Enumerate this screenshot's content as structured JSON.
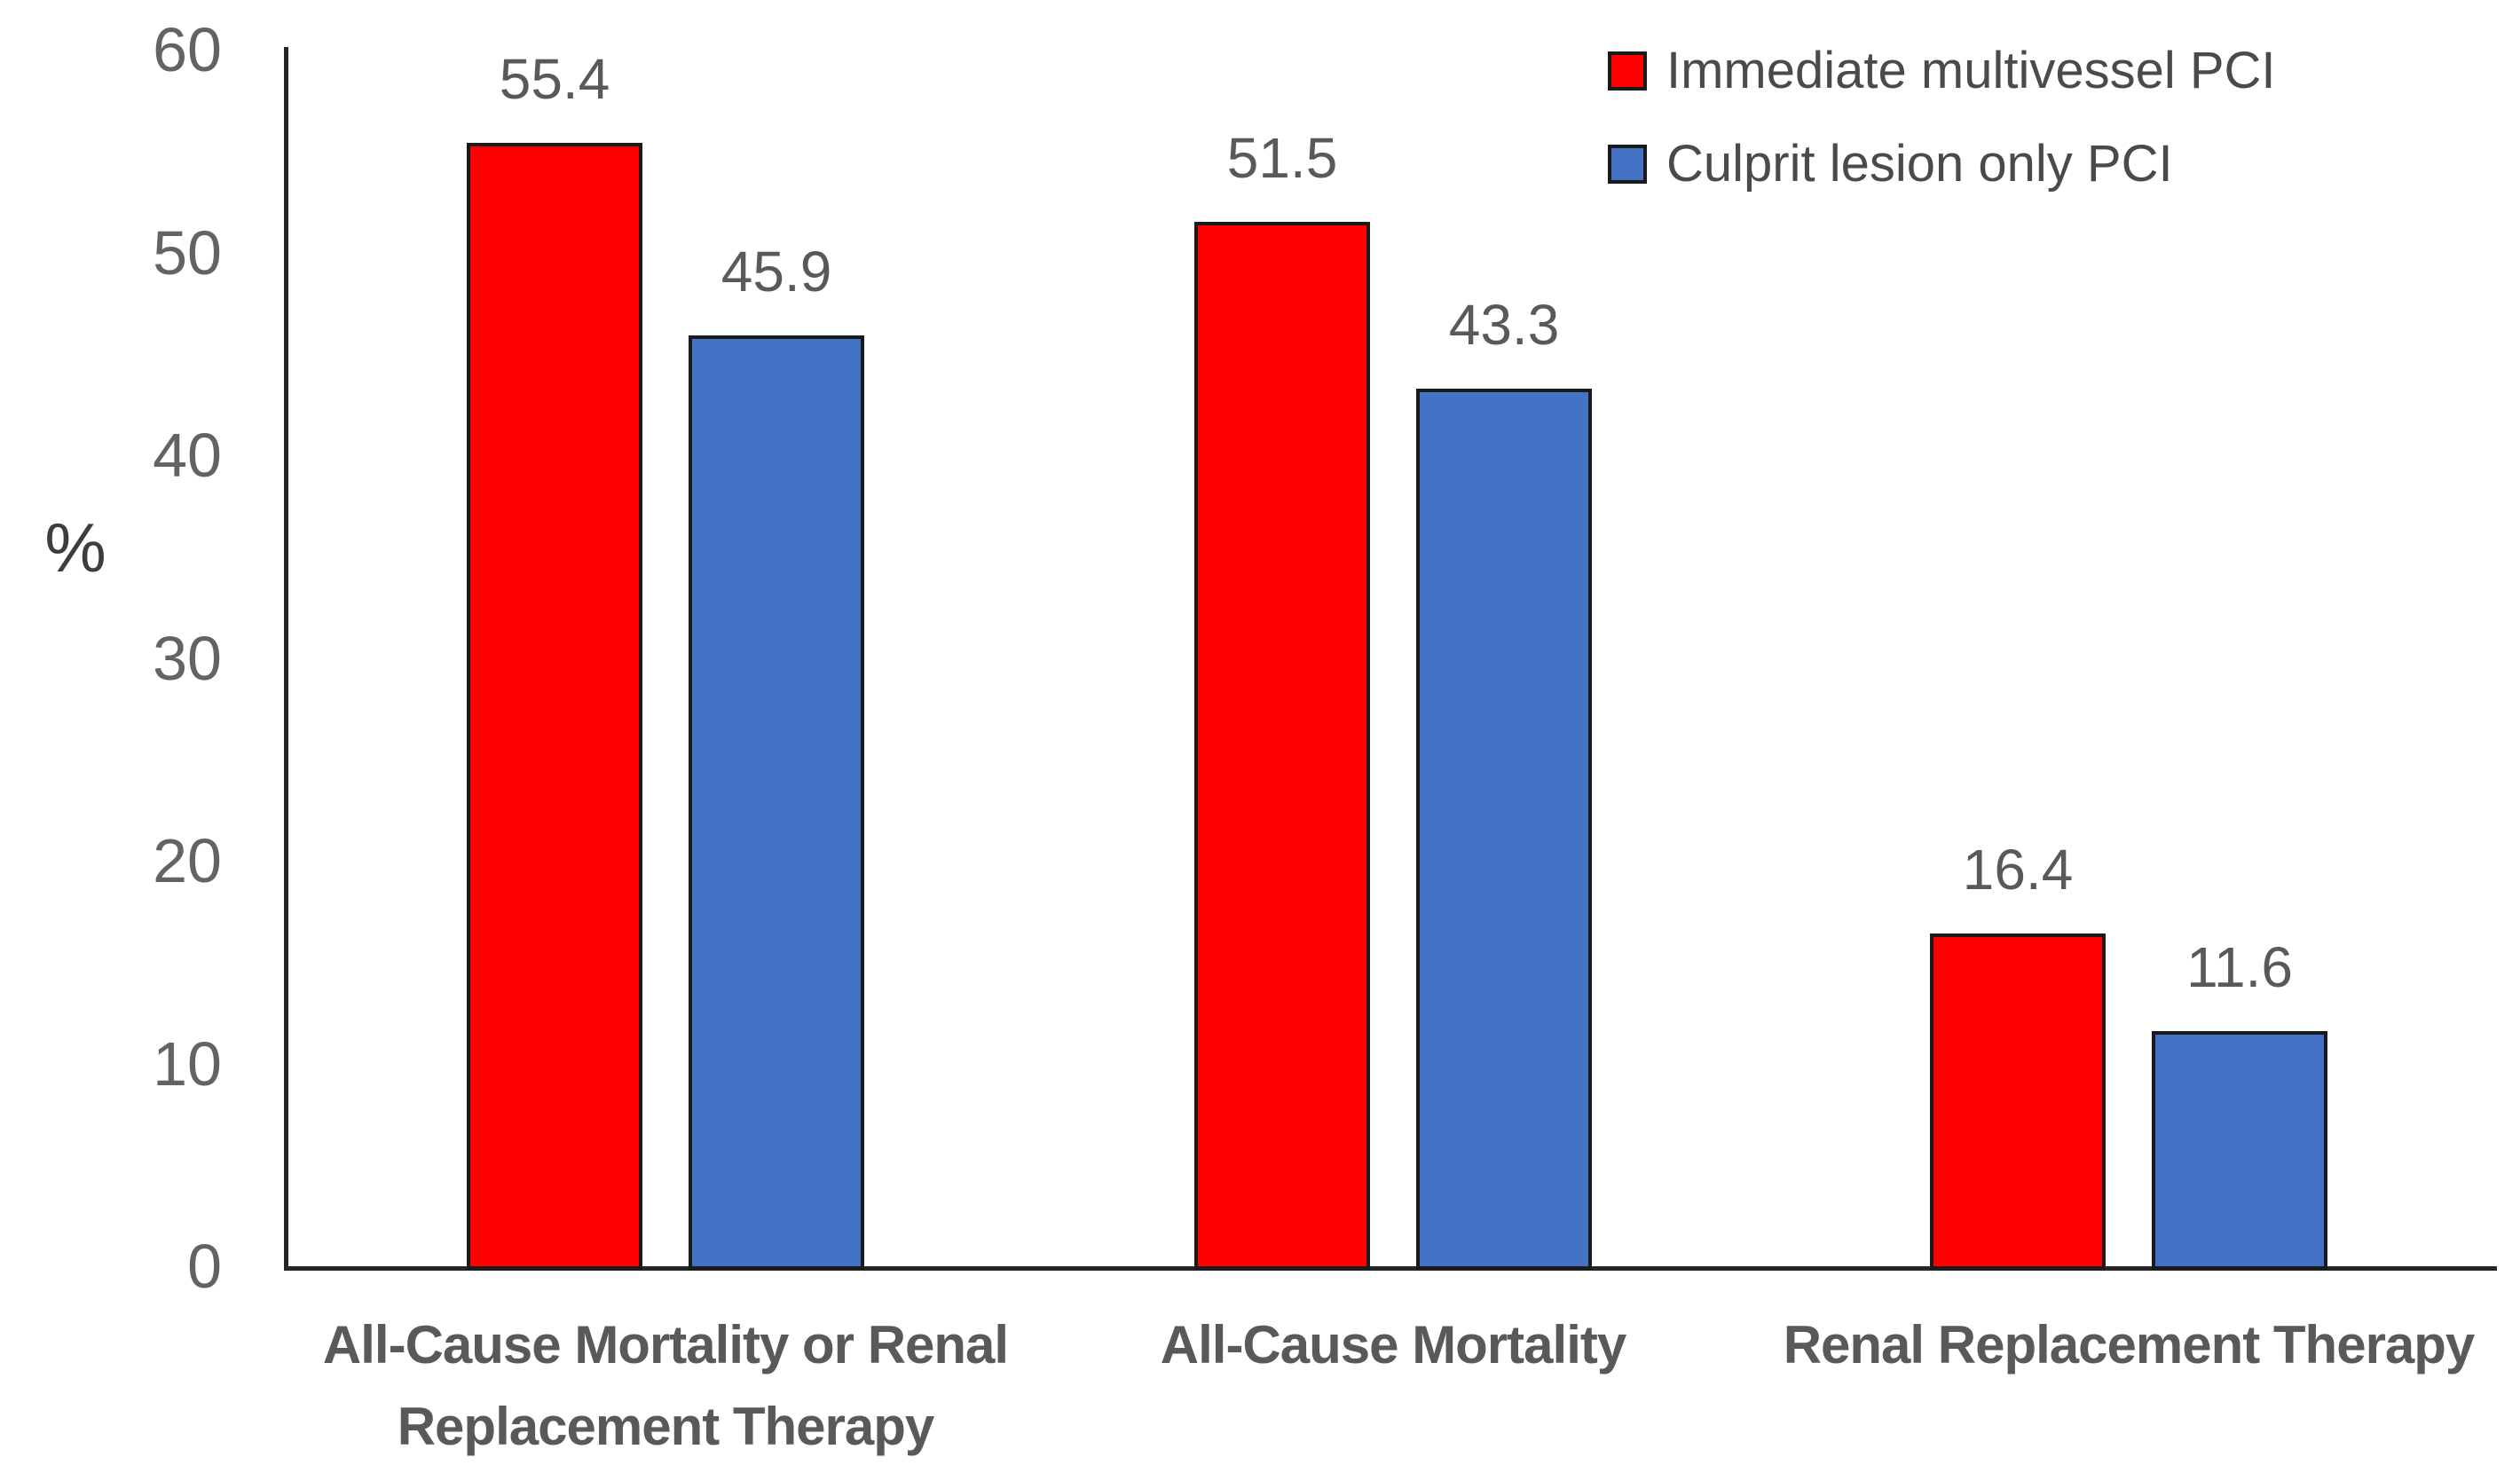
{
  "chart_data": {
    "type": "bar",
    "title": "",
    "ylabel": "%",
    "xlabel": "",
    "ylim": [
      0,
      60
    ],
    "yticks": [
      0,
      10,
      20,
      30,
      40,
      50,
      60
    ],
    "grid": false,
    "legend_position": "top-right",
    "categories": [
      "All-Cause Mortality or Renal Replacement Therapy",
      "All-Cause Mortality",
      "Renal Replacement Therapy"
    ],
    "category_lines": [
      [
        "All-Cause Mortality or Renal",
        "Replacement Therapy"
      ],
      [
        "All-Cause Mortality"
      ],
      [
        "Renal Replacement Therapy"
      ]
    ],
    "series": [
      {
        "name": "Immediate multivessel PCI",
        "color": "#FE0000",
        "values": [
          55.4,
          51.5,
          16.4
        ],
        "value_labels": [
          "55.4",
          "51.5",
          "16.4"
        ]
      },
      {
        "name": "Culprit lesion only PCI",
        "color": "#4472C4",
        "values": [
          45.9,
          43.3,
          11.6
        ],
        "value_labels": [
          "45.9",
          "43.3",
          "11.6"
        ]
      }
    ],
    "colors": {
      "background": "#FFFFFF",
      "axis": "#262626",
      "bar_border": "#1A1A1A",
      "tick_label": "#636363",
      "data_label": "#595959",
      "category_label": "#595959",
      "legend_text": "#4A4A4A"
    }
  }
}
